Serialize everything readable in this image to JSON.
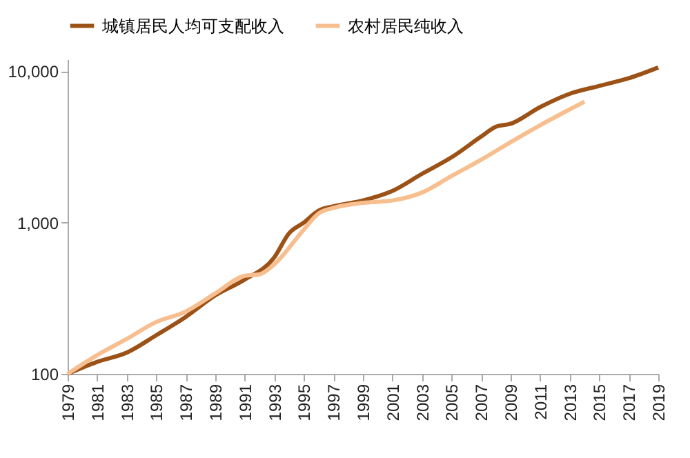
{
  "chart_data": {
    "type": "line",
    "log": "y",
    "legend": "top",
    "grid": false,
    "marker": "none",
    "line_style": "solid",
    "xlim": [
      1979,
      2019
    ],
    "xticks": [
      1979,
      1981,
      1983,
      1985,
      1987,
      1989,
      1991,
      1993,
      1995,
      1997,
      1999,
      2001,
      2003,
      2005,
      2007,
      2009,
      2011,
      2013,
      2015,
      2017,
      2019
    ],
    "ylim": [
      100,
      12000
    ],
    "yticks": [
      {
        "value": 100,
        "label": "100"
      },
      {
        "value": 1000,
        "label": "1,000"
      },
      {
        "value": 10000,
        "label": "10,000"
      }
    ],
    "series": [
      {
        "name": "城镇居民人均可支配收入",
        "color": "#9c5216",
        "x": [
          1979,
          1981,
          1983,
          1985,
          1987,
          1989,
          1991,
          1993,
          1994,
          1995,
          1996,
          1997,
          1999,
          2001,
          2003,
          2005,
          2007,
          2008,
          2009,
          2011,
          2013,
          2015,
          2017,
          2019
        ],
        "values": [
          100,
          120,
          138,
          180,
          238,
          330,
          420,
          590,
          850,
          1000,
          1200,
          1280,
          1400,
          1620,
          2100,
          2700,
          3700,
          4300,
          4500,
          5800,
          7100,
          8000,
          9000,
          10600
        ]
      },
      {
        "name": "农村居民纯收入",
        "color": "#f7be8f",
        "x": [
          1979,
          1981,
          1983,
          1985,
          1987,
          1989,
          1991,
          1992,
          1993,
          1995,
          1996,
          1997,
          1999,
          2001,
          2003,
          2005,
          2007,
          2009,
          2011,
          2013,
          2014
        ],
        "values": [
          100,
          133,
          170,
          220,
          258,
          340,
          445,
          455,
          530,
          900,
          1150,
          1250,
          1350,
          1400,
          1580,
          2030,
          2600,
          3400,
          4400,
          5600,
          6300
        ]
      }
    ]
  }
}
